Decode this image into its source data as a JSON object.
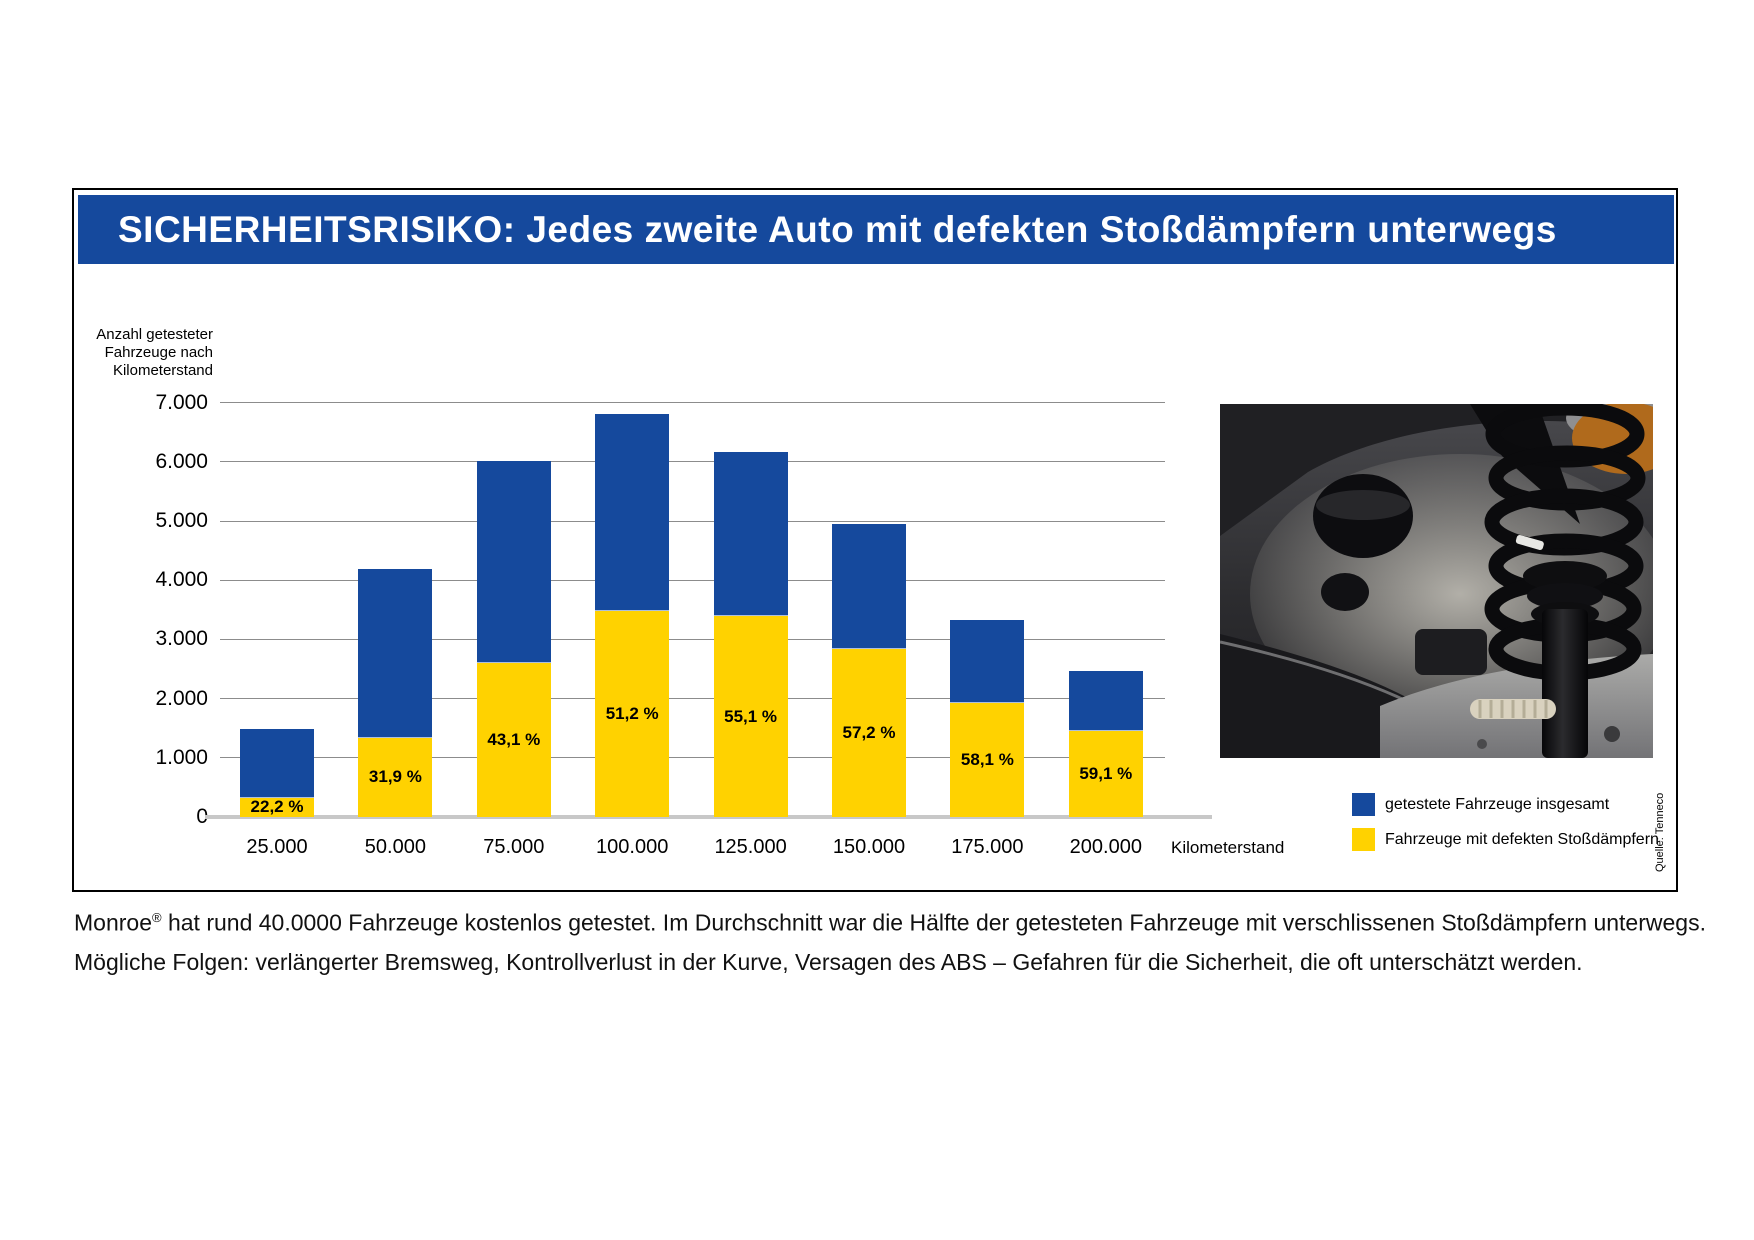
{
  "colors": {
    "primary_blue": "#15499D",
    "accent_yellow": "#FFD200",
    "gridline_gray": "#8C8C8C",
    "baseline_gray": "#C8C8C8",
    "title_text": "#FFFFFF"
  },
  "header": {
    "title": "SICHERHEITSRISIKO: Jedes zweite Auto mit defekten Stoßdämpfern unterwegs"
  },
  "chart_data": {
    "type": "bar",
    "stacked": true,
    "y_axis_title_lines": [
      "Anzahl getesteter",
      "Fahrzeuge nach",
      "Kilometerstand"
    ],
    "x_axis_title": "Kilometerstand",
    "categories": [
      "25.000",
      "50.000",
      "75.000",
      "100.000",
      "125.000",
      "150.000",
      "175.000",
      "200.000"
    ],
    "series": [
      {
        "name": "getestete Fahrzeuge insgesamt",
        "color": "#15499D",
        "values": [
          1480,
          4190,
          6020,
          6800,
          6160,
          4950,
          3320,
          2470
        ]
      },
      {
        "name": "Fahrzeuge mit defekten Stoßdämpfern",
        "color": "#FFD200",
        "values": [
          329,
          1337,
          2595,
          3482,
          3394,
          2831,
          1929,
          1460
        ]
      }
    ],
    "defect_percent_labels": [
      "22,2 %",
      "31,9 %",
      "43,1 %",
      "51,2 %",
      "55,1 %",
      "57,2 %",
      "58,1 %",
      "59,1 %"
    ],
    "y_ticks": [
      {
        "label": "7.000",
        "value": 7000
      },
      {
        "label": "6.000",
        "value": 6000
      },
      {
        "label": "5.000",
        "value": 5000
      },
      {
        "label": "4.000",
        "value": 4000
      },
      {
        "label": "3.000",
        "value": 3000
      },
      {
        "label": "2.000",
        "value": 2000
      },
      {
        "label": "1.000",
        "value": 1000
      },
      {
        "label": "0",
        "value": 0
      }
    ],
    "ylim": [
      0,
      7000
    ],
    "grid": true,
    "legend_position": "bottom-right"
  },
  "legend": {
    "items": [
      {
        "label": "getestete Fahrzeuge insgesamt",
        "color": "#15499D"
      },
      {
        "label": "Fahrzeuge mit defekten Stoßdämpfern",
        "color": "#FFD200"
      }
    ]
  },
  "photo": {
    "description": "Stoßdämpfer mit Schraubenfeder im Radhaus"
  },
  "source": "Quelle: Tenneco",
  "caption": {
    "brand": "Monroe",
    "registered_mark": "®",
    "line1_rest": " hat rund 40.0000 Fahrzeuge kostenlos getestet. Im Durchschnitt war die Hälfte der getesteten Fahrzeuge mit verschlissenen Stoßdämpfern unterwegs.",
    "line2": "Mögliche Folgen: verlängerter Bremsweg, Kontrollverlust in der Kurve, Versagen des ABS – Gefahren für die Sicherheit, die oft unterschätzt werden."
  }
}
